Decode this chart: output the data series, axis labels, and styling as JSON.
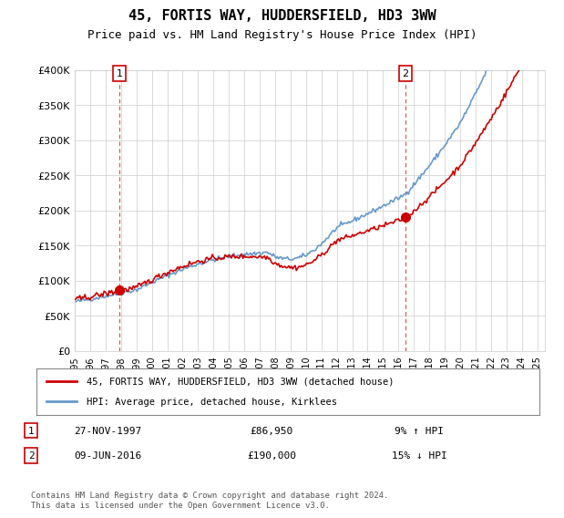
{
  "title": "45, FORTIS WAY, HUDDERSFIELD, HD3 3WW",
  "subtitle": "Price paid vs. HM Land Registry's House Price Index (HPI)",
  "ylabel_ticks": [
    "£0",
    "£50K",
    "£100K",
    "£150K",
    "£200K",
    "£250K",
    "£300K",
    "£350K",
    "£400K"
  ],
  "ytick_values": [
    0,
    50000,
    100000,
    150000,
    200000,
    250000,
    300000,
    350000,
    400000
  ],
  "ylim": [
    0,
    400000
  ],
  "xlim_start": 1995.0,
  "xlim_end": 2025.5,
  "sale1_x": 1997.9,
  "sale1_y": 86950,
  "sale1_label": "1",
  "sale2_x": 2016.44,
  "sale2_y": 190000,
  "sale2_label": "2",
  "line_color_price": "#cc0000",
  "line_color_hpi": "#6699cc",
  "dashed_line_color": "#cc0000",
  "marker_color": "#cc0000",
  "legend_label1": "45, FORTIS WAY, HUDDERSFIELD, HD3 3WW (detached house)",
  "legend_label2": "HPI: Average price, detached house, Kirklees",
  "table_row1_num": "1",
  "table_row1_date": "27-NOV-1997",
  "table_row1_price": "£86,950",
  "table_row1_hpi": "9% ↑ HPI",
  "table_row2_num": "2",
  "table_row2_date": "09-JUN-2016",
  "table_row2_price": "£190,000",
  "table_row2_hpi": "15% ↓ HPI",
  "footer": "Contains HM Land Registry data © Crown copyright and database right 2024.\nThis data is licensed under the Open Government Licence v3.0.",
  "background_color": "#ffffff",
  "grid_color": "#cccccc"
}
